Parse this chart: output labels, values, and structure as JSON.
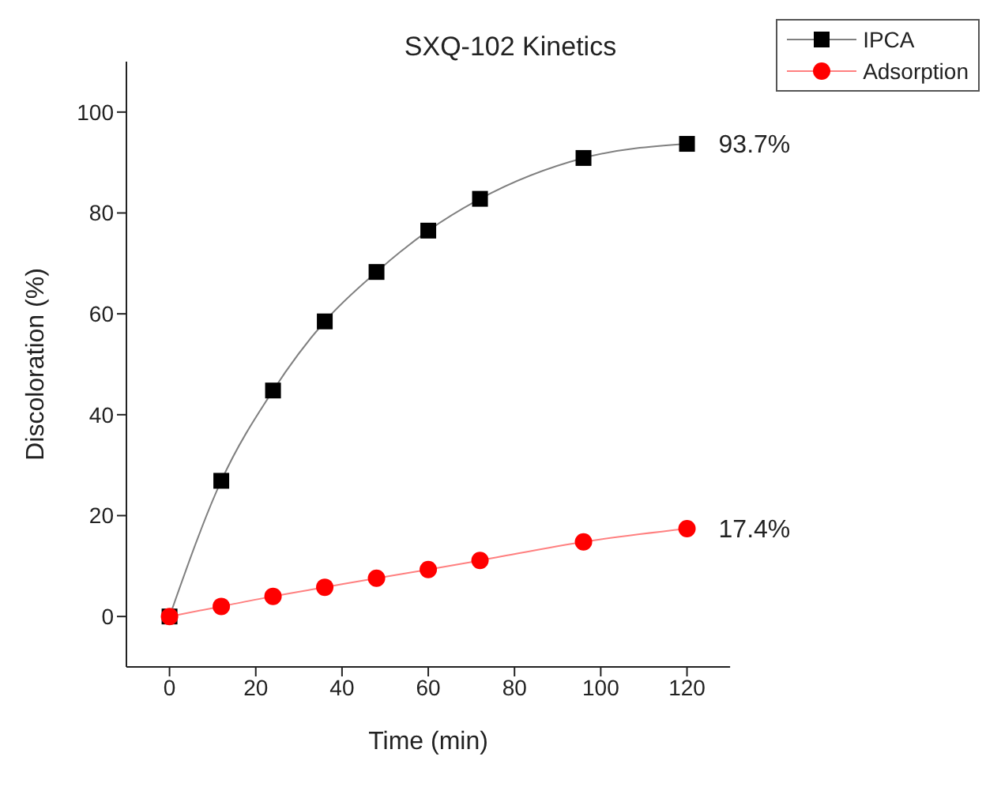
{
  "chart_data": {
    "type": "line",
    "title": "SXQ-102 Kinetics",
    "xlabel": "Time (min)",
    "ylabel": "Discoloration (%)",
    "x": [
      0,
      12,
      24,
      36,
      48,
      60,
      72,
      96,
      120
    ],
    "series": [
      {
        "name": "IPCA",
        "color": "#000000",
        "marker": "square",
        "values": [
          0,
          26.9,
          44.8,
          58.5,
          68.3,
          76.5,
          82.8,
          90.9,
          93.7
        ]
      },
      {
        "name": "Adsorption",
        "color": "#ff0000",
        "marker": "circle",
        "values": [
          0,
          2.0,
          4.0,
          5.8,
          7.6,
          9.3,
          11.1,
          14.8,
          17.4
        ]
      }
    ],
    "xlim": [
      -10,
      130
    ],
    "xticks": [
      0,
      20,
      40,
      60,
      80,
      100,
      120
    ],
    "ylim": [
      -10,
      110
    ],
    "yticks": [
      0,
      20,
      40,
      60,
      80,
      100
    ],
    "grid": false,
    "legend": "top right",
    "annotations": [
      {
        "text": "93.7%",
        "x": 120,
        "y": 93.7
      },
      {
        "text": "17.4%",
        "x": 120,
        "y": 17.4
      }
    ]
  }
}
